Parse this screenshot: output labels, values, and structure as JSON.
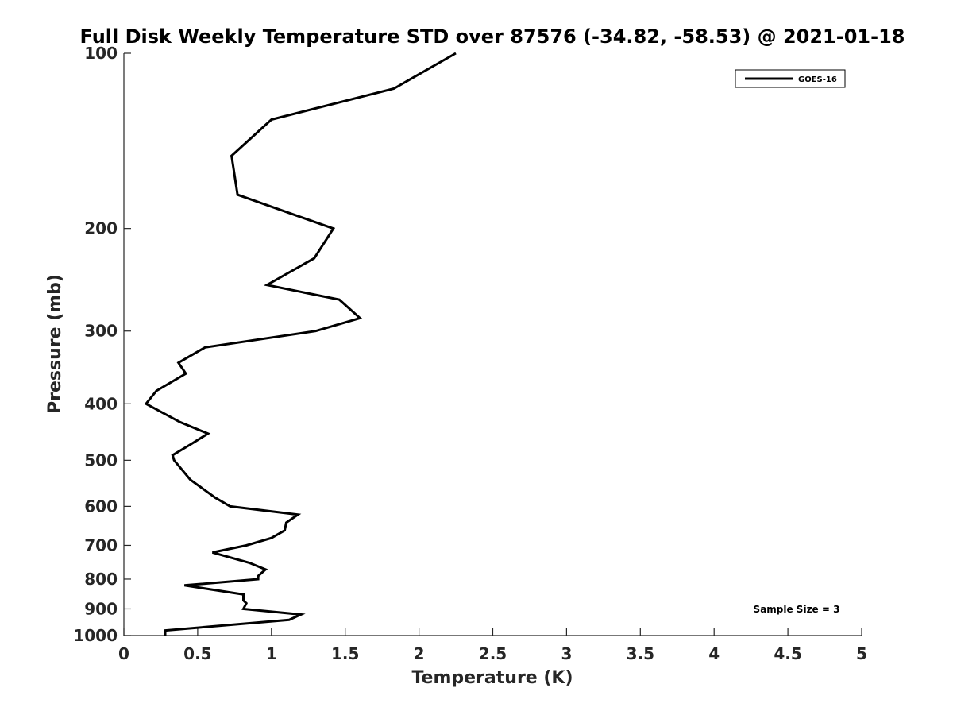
{
  "chart_data": {
    "type": "line",
    "title": "Full Disk Weekly Temperature STD over 87576 (-34.82, -58.53) @ 2021-01-18",
    "xlabel": "Temperature (K)",
    "ylabel": "Pressure (mb)",
    "xlim": [
      0,
      5
    ],
    "ylim": [
      1000,
      100
    ],
    "y_scale": "log",
    "y_reversed": true,
    "x_ticks": [
      "0",
      "0.5",
      "1",
      "1.5",
      "2",
      "2.5",
      "3",
      "3.5",
      "4",
      "4.5",
      "5"
    ],
    "y_ticks": [
      "100",
      "200",
      "300",
      "400",
      "500",
      "600",
      "700",
      "800",
      "900",
      "1000"
    ],
    "grid": false,
    "legend_position": "top-right",
    "annotation": "Sample Size = 3",
    "series": [
      {
        "name": "GOES-16",
        "color": "#000000",
        "x": [
          2.25,
          1.83,
          1.0,
          0.73,
          0.77,
          1.42,
          1.29,
          0.97,
          1.46,
          1.6,
          1.3,
          0.55,
          0.37,
          0.42,
          0.22,
          0.15,
          0.38,
          0.57,
          0.45,
          0.33,
          0.34,
          0.45,
          0.62,
          0.72,
          1.18,
          1.1,
          1.09,
          1.0,
          0.83,
          0.6,
          0.85,
          0.96,
          0.91,
          0.91,
          0.41,
          0.81,
          0.81,
          0.83,
          0.81,
          1.2,
          1.12,
          0.28,
          0.28
        ],
        "y": [
          100,
          115,
          130,
          150,
          175,
          200,
          225,
          250,
          265,
          285,
          300,
          320,
          340,
          355,
          380,
          400,
          430,
          450,
          470,
          490,
          500,
          540,
          580,
          600,
          620,
          640,
          660,
          680,
          700,
          720,
          750,
          770,
          790,
          800,
          820,
          850,
          870,
          880,
          900,
          920,
          940,
          980,
          1000
        ]
      }
    ]
  }
}
